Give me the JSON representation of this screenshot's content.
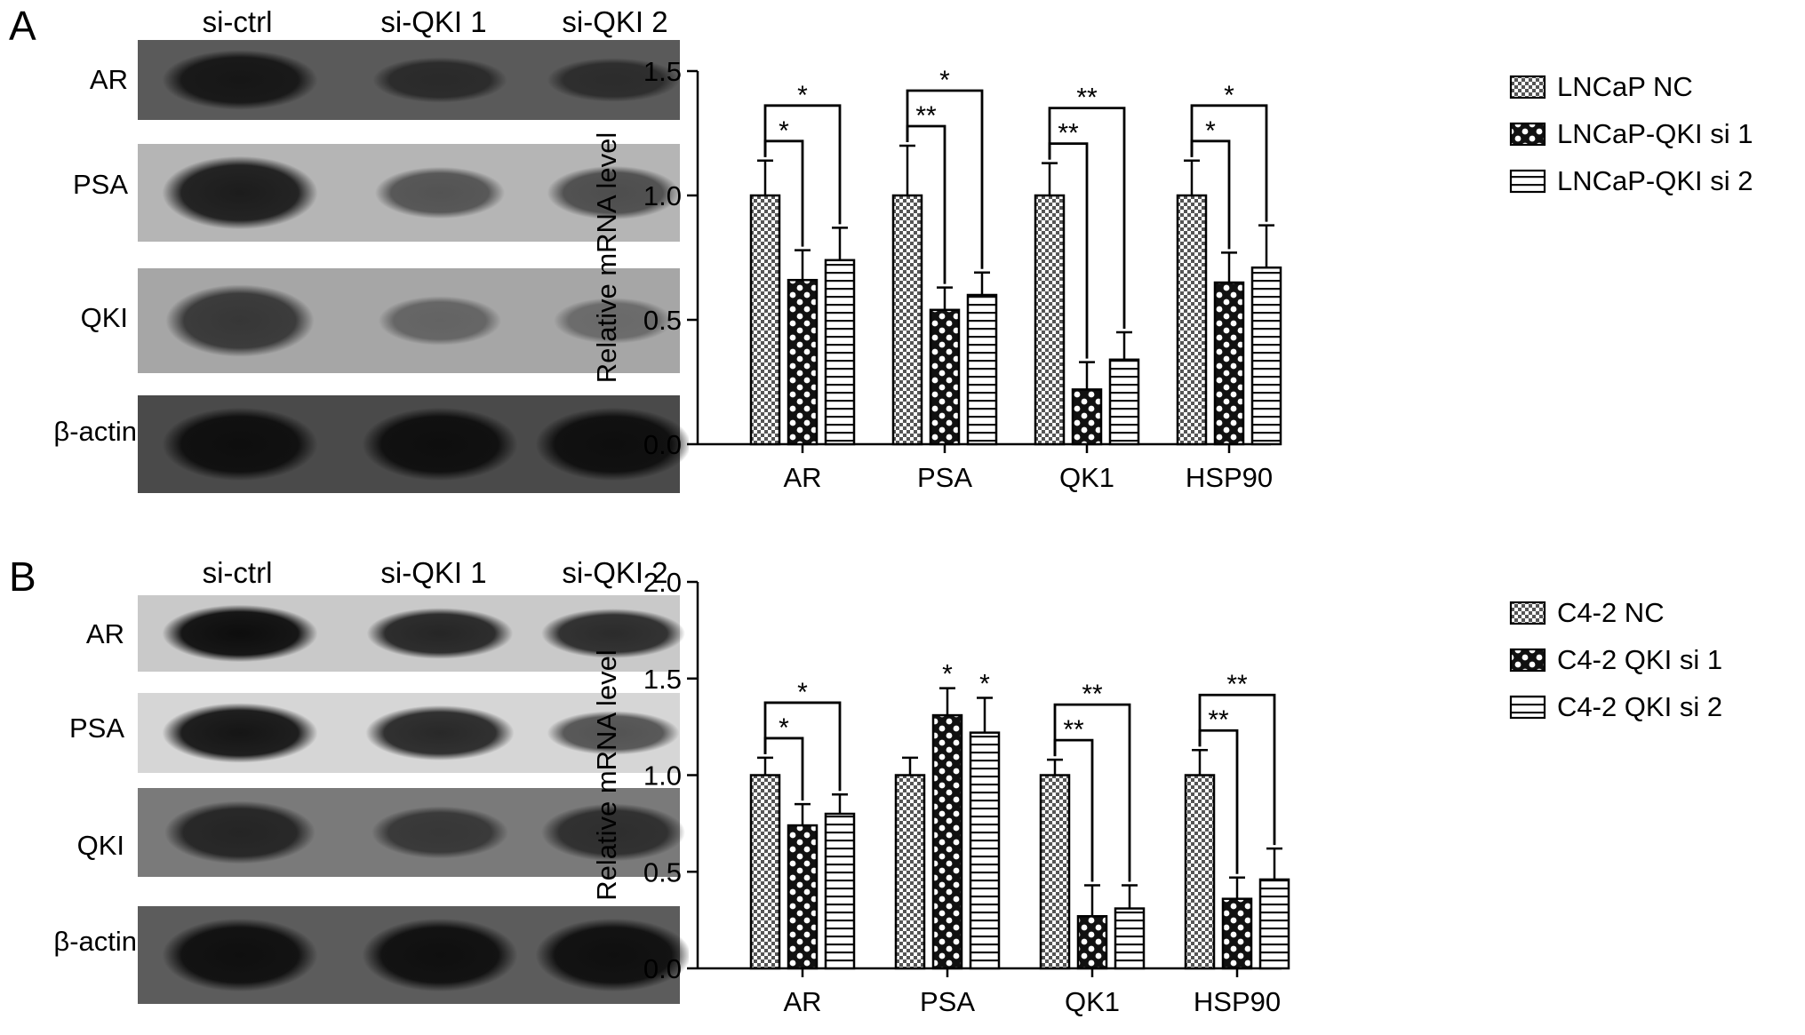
{
  "panels": [
    {
      "letter": "A",
      "blot": {
        "lanes": [
          "si-ctrl",
          "si-QKI 1",
          "si-QKI 2"
        ],
        "rows": [
          {
            "label": "AR",
            "background": "#5a5a5a",
            "band": "#161616",
            "intensity": [
              1.0,
              0.55,
              0.5
            ]
          },
          {
            "label": "PSA",
            "background": "#b5b5b5",
            "band": "#1c1c1c",
            "intensity": [
              1.0,
              0.45,
              0.5
            ]
          },
          {
            "label": "QKI",
            "background": "#a6a6a6",
            "band": "#2a2a2a",
            "intensity": [
              0.85,
              0.3,
              0.22
            ]
          },
          {
            "label": "β-actin",
            "background": "#4a4a4a",
            "band": "#0e0e0e",
            "intensity": [
              1.0,
              1.0,
              1.0
            ]
          }
        ]
      },
      "chart_data": {
        "type": "bar",
        "ylabel": "Relative mRNA level",
        "ylim": [
          0,
          1.5
        ],
        "yticks": [
          "0.0",
          "0.5",
          "1.0",
          "1.5"
        ],
        "categories": [
          "AR",
          "PSA",
          "QK1",
          "HSP90"
        ],
        "series": [
          {
            "name": "LNCaP NC",
            "pattern": "checker",
            "values": [
              1.0,
              1.0,
              1.0,
              1.0
            ],
            "errors": [
              0.14,
              0.2,
              0.13,
              0.14
            ]
          },
          {
            "name": "LNCaP-QKI si 1",
            "pattern": "dots",
            "values": [
              0.66,
              0.54,
              0.22,
              0.65
            ],
            "errors": [
              0.12,
              0.09,
              0.11,
              0.12
            ]
          },
          {
            "name": "LNCaP-QKI si 2",
            "pattern": "hstripe",
            "values": [
              0.74,
              0.6,
              0.34,
              0.71
            ],
            "errors": [
              0.13,
              0.09,
              0.11,
              0.17
            ]
          }
        ],
        "significance": [
          {
            "category": 0,
            "bracket_to": 1,
            "label": "*"
          },
          {
            "category": 0,
            "bracket_to": 2,
            "label": "*"
          },
          {
            "category": 1,
            "bracket_to": 1,
            "label": "**"
          },
          {
            "category": 1,
            "bracket_to": 2,
            "label": "*"
          },
          {
            "category": 2,
            "bracket_to": 1,
            "label": "**"
          },
          {
            "category": 2,
            "bracket_to": 2,
            "label": "**"
          },
          {
            "category": 3,
            "bracket_to": 1,
            "label": "*"
          },
          {
            "category": 3,
            "bracket_to": 2,
            "label": "*"
          }
        ],
        "legend_position": "right"
      }
    },
    {
      "letter": "B",
      "blot": {
        "lanes": [
          "si-ctrl",
          "si-QKI 1",
          "si-QKI 2"
        ],
        "rows": [
          {
            "label": "AR",
            "background": "#c9c9c9",
            "band": "#0d0d0d",
            "intensity": [
              1.0,
              0.8,
              0.75
            ]
          },
          {
            "label": "PSA",
            "background": "#d6d6d6",
            "band": "#151515",
            "intensity": [
              1.0,
              0.85,
              0.5
            ]
          },
          {
            "label": "QKI",
            "background": "#7a7a7a",
            "band": "#1f1f1f",
            "intensity": [
              0.9,
              0.6,
              0.75
            ]
          },
          {
            "label": "β-actin",
            "background": "#5c5c5c",
            "band": "#0f0f0f",
            "intensity": [
              1.0,
              1.0,
              1.0
            ]
          }
        ]
      },
      "chart_data": {
        "type": "bar",
        "ylabel": "Relative mRNA level",
        "ylim": [
          0,
          2.0
        ],
        "yticks": [
          "0.0",
          "0.5",
          "1.0",
          "1.5",
          "2.0"
        ],
        "categories": [
          "AR",
          "PSA",
          "QK1",
          "HSP90"
        ],
        "series": [
          {
            "name": "C4-2 NC",
            "pattern": "checker",
            "values": [
              1.0,
              1.0,
              1.0,
              1.0
            ],
            "errors": [
              0.09,
              0.09,
              0.08,
              0.13
            ]
          },
          {
            "name": "C4-2 QKI si 1",
            "pattern": "dots",
            "values": [
              0.74,
              1.31,
              0.27,
              0.36
            ],
            "errors": [
              0.11,
              0.14,
              0.16,
              0.11
            ]
          },
          {
            "name": "C4-2 QKI si 2",
            "pattern": "hstripe",
            "values": [
              0.8,
              1.22,
              0.31,
              0.46
            ],
            "errors": [
              0.1,
              0.18,
              0.12,
              0.16
            ]
          }
        ],
        "significance": [
          {
            "category": 0,
            "bracket_to": 1,
            "label": "*"
          },
          {
            "category": 0,
            "bracket_to": 2,
            "label": "*"
          },
          {
            "category": 1,
            "star_on": 1,
            "label": "*"
          },
          {
            "category": 1,
            "star_on": 2,
            "label": "*"
          },
          {
            "category": 2,
            "bracket_to": 1,
            "label": "**"
          },
          {
            "category": 2,
            "bracket_to": 2,
            "label": "**"
          },
          {
            "category": 3,
            "bracket_to": 1,
            "label": "**"
          },
          {
            "category": 3,
            "bracket_to": 2,
            "label": "**"
          }
        ],
        "legend_position": "right"
      }
    }
  ]
}
